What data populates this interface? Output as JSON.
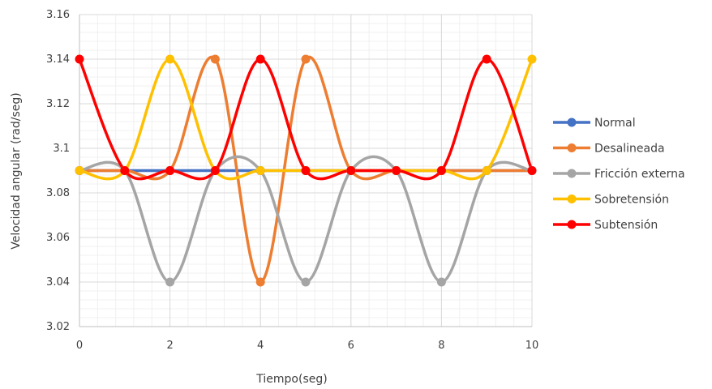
{
  "chart_data": {
    "type": "line",
    "title": "",
    "xlabel": "Tiempo(seg)",
    "ylabel": "Velocidad angular (rad/seg)",
    "xlim": [
      0,
      10
    ],
    "ylim": [
      3.02,
      3.16
    ],
    "x_ticks": [
      0,
      2,
      4,
      6,
      8,
      10
    ],
    "y_ticks": [
      3.02,
      3.04,
      3.06,
      3.08,
      3.1,
      3.12,
      3.14,
      3.16
    ],
    "y_tick_labels": [
      "3.02",
      "3.04",
      "3.06",
      "3.08",
      "3.1",
      "3.12",
      "3.14",
      "3.16"
    ],
    "x_tick_labels": [
      "0",
      "2",
      "4",
      "6",
      "8",
      "10"
    ],
    "grid": true,
    "minor_grid": true,
    "legend_position": "right",
    "smooth": true,
    "x": [
      0,
      1,
      2,
      3,
      4,
      5,
      6,
      7,
      8,
      9,
      10
    ],
    "series": [
      {
        "name": "Normal",
        "color": "#4472C4",
        "values": [
          3.09,
          3.09,
          3.09,
          3.09,
          3.09,
          3.09,
          3.09,
          3.09,
          3.09,
          3.09,
          3.09
        ]
      },
      {
        "name": "Desalineada",
        "color": "#ED7D31",
        "values": [
          3.09,
          3.09,
          3.09,
          3.14,
          3.04,
          3.14,
          3.09,
          3.09,
          3.09,
          3.09,
          3.09
        ]
      },
      {
        "name": "Fricción externa",
        "color": "#A5A5A5",
        "values": [
          3.09,
          3.09,
          3.04,
          3.09,
          3.09,
          3.04,
          3.09,
          3.09,
          3.04,
          3.09,
          3.09
        ]
      },
      {
        "name": "Sobretensión",
        "color": "#FFC000",
        "values": [
          3.09,
          3.09,
          3.14,
          3.09,
          3.09,
          3.09,
          3.09,
          3.09,
          3.09,
          3.09,
          3.14
        ]
      },
      {
        "name": "Subtensión",
        "color": "#FF0000",
        "values": [
          3.14,
          3.09,
          3.09,
          3.09,
          3.14,
          3.09,
          3.09,
          3.09,
          3.09,
          3.14,
          3.09
        ]
      }
    ]
  }
}
